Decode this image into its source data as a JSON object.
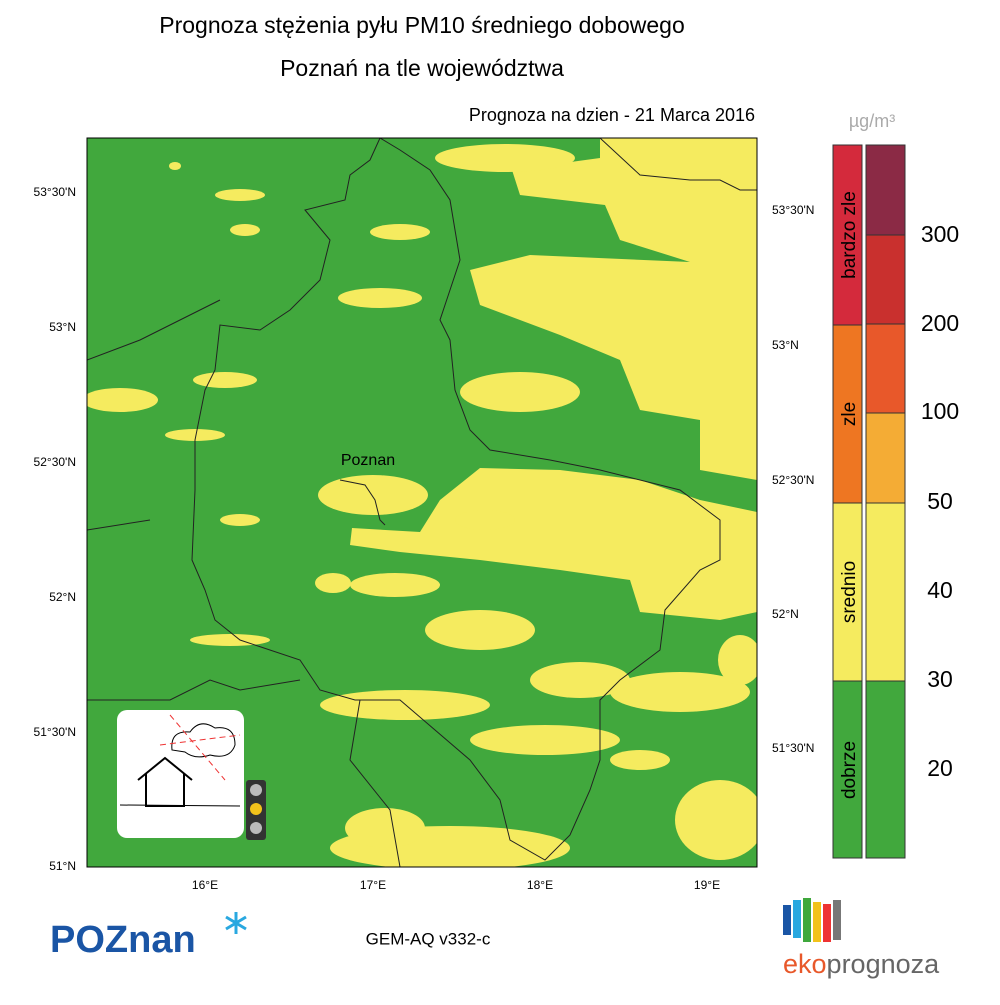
{
  "header": {
    "title": "Prognoza stężenia pyłu PM10 średniego dobowego",
    "subtitle": "Poznań na tle województwa",
    "date": "Prognoza na dzien -  21 Marca 2016"
  },
  "map": {
    "city": "Poznan",
    "lat_left": [
      "53°30'N",
      "53°N",
      "52°30'N",
      "52°N",
      "51°30'N",
      "51°N"
    ],
    "lat_right": [
      "53°30'N",
      "53°N",
      "52°30'N",
      "52°N",
      "51°30'N"
    ],
    "lon": [
      "16°E",
      "17°E",
      "18°E",
      "19°E"
    ]
  },
  "legend": {
    "unit": "µg/m³",
    "classes": [
      "bardzo zle",
      "zle",
      "srednio",
      "dobrze"
    ],
    "levels": [
      "300",
      "200",
      "100",
      "50",
      "40",
      "30",
      "20"
    ]
  },
  "footer": {
    "model": "GEM-AQ v332-c",
    "logo_left": "POZnan",
    "logo_right_a": "eko",
    "logo_right_b": "prognoza"
  }
}
